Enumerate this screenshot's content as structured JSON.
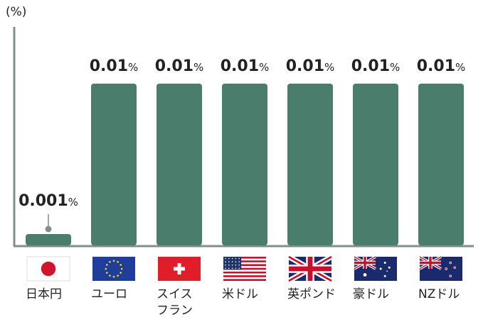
{
  "chart_data": {
    "type": "bar",
    "ylabel": "(%)",
    "categories": [
      "日本円",
      "ユーロ",
      "スイス\nフラン",
      "米ドル",
      "英ポンド",
      "豪ドル",
      "NZドル"
    ],
    "values": [
      0.001,
      0.01,
      0.01,
      0.01,
      0.01,
      0.01,
      0.01
    ],
    "value_labels": [
      "0.001",
      "0.01",
      "0.01",
      "0.01",
      "0.01",
      "0.01",
      "0.01"
    ],
    "value_unit": "%",
    "flags": [
      "japan-flag-icon",
      "eu-flag-icon",
      "switzerland-flag-icon",
      "usa-flag-icon",
      "uk-flag-icon",
      "australia-flag-icon",
      "new-zealand-flag-icon"
    ],
    "ylim": [
      0,
      0.0135
    ],
    "grid": false,
    "colors": {
      "bar": "#4a7d6c",
      "axis": "#7f8f89"
    }
  }
}
